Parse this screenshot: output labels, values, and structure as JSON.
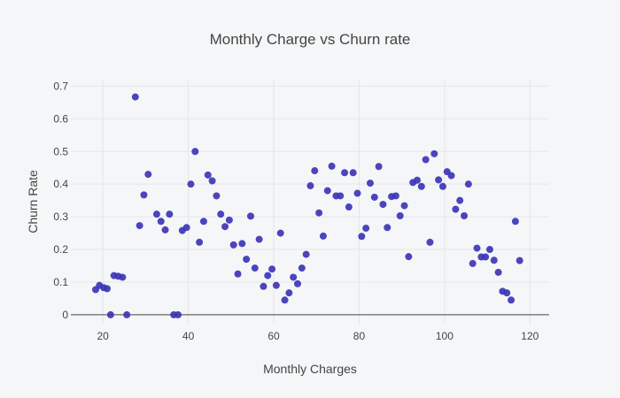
{
  "chart_data": {
    "type": "scatter",
    "title": "Monthly Charge vs Churn rate",
    "xlabel": "Monthly Charges",
    "ylabel": "Churn Rate",
    "xlim": [
      12.5,
      124.5
    ],
    "ylim": [
      -0.03,
      0.72
    ],
    "x_ticks": [
      20,
      40,
      60,
      80,
      100,
      120
    ],
    "y_ticks": [
      0,
      0.1,
      0.2,
      0.3,
      0.4,
      0.5,
      0.6,
      0.7
    ],
    "grid": true,
    "legend": "none",
    "marker_color": "#3b35b6",
    "points": [
      [
        18.3,
        0.077
      ],
      [
        19.2,
        0.09
      ],
      [
        20.2,
        0.083
      ],
      [
        21.0,
        0.08
      ],
      [
        21.8,
        0.0
      ],
      [
        22.6,
        0.12
      ],
      [
        23.6,
        0.118
      ],
      [
        24.6,
        0.115
      ],
      [
        25.6,
        0.0
      ],
      [
        27.6,
        0.667
      ],
      [
        28.6,
        0.273
      ],
      [
        29.6,
        0.367
      ],
      [
        30.6,
        0.43
      ],
      [
        32.6,
        0.308
      ],
      [
        33.6,
        0.286
      ],
      [
        34.6,
        0.26
      ],
      [
        35.6,
        0.308
      ],
      [
        36.6,
        0.0
      ],
      [
        37.6,
        0.0
      ],
      [
        38.6,
        0.258
      ],
      [
        39.6,
        0.267
      ],
      [
        40.6,
        0.4
      ],
      [
        41.6,
        0.5
      ],
      [
        42.6,
        0.222
      ],
      [
        43.6,
        0.286
      ],
      [
        44.6,
        0.428
      ],
      [
        45.6,
        0.41
      ],
      [
        46.6,
        0.364
      ],
      [
        47.6,
        0.308
      ],
      [
        48.6,
        0.27
      ],
      [
        49.6,
        0.29
      ],
      [
        50.6,
        0.214
      ],
      [
        51.6,
        0.125
      ],
      [
        52.6,
        0.218
      ],
      [
        53.6,
        0.17
      ],
      [
        54.6,
        0.302
      ],
      [
        55.6,
        0.143
      ],
      [
        56.6,
        0.231
      ],
      [
        57.6,
        0.087
      ],
      [
        58.6,
        0.12
      ],
      [
        59.6,
        0.14
      ],
      [
        60.6,
        0.09
      ],
      [
        61.6,
        0.25
      ],
      [
        62.6,
        0.045
      ],
      [
        63.6,
        0.067
      ],
      [
        64.6,
        0.115
      ],
      [
        65.6,
        0.095
      ],
      [
        66.6,
        0.143
      ],
      [
        67.6,
        0.185
      ],
      [
        68.6,
        0.395
      ],
      [
        69.6,
        0.441
      ],
      [
        70.6,
        0.312
      ],
      [
        71.6,
        0.241
      ],
      [
        72.6,
        0.38
      ],
      [
        73.6,
        0.455
      ],
      [
        74.6,
        0.364
      ],
      [
        75.6,
        0.364
      ],
      [
        76.6,
        0.435
      ],
      [
        77.6,
        0.33
      ],
      [
        78.6,
        0.435
      ],
      [
        79.6,
        0.372
      ],
      [
        80.6,
        0.24
      ],
      [
        81.6,
        0.265
      ],
      [
        82.6,
        0.403
      ],
      [
        83.6,
        0.36
      ],
      [
        84.6,
        0.454
      ],
      [
        85.6,
        0.338
      ],
      [
        86.6,
        0.267
      ],
      [
        87.6,
        0.362
      ],
      [
        88.6,
        0.364
      ],
      [
        89.6,
        0.303
      ],
      [
        90.6,
        0.334
      ],
      [
        91.6,
        0.178
      ],
      [
        92.6,
        0.405
      ],
      [
        93.6,
        0.412
      ],
      [
        94.6,
        0.393
      ],
      [
        95.6,
        0.475
      ],
      [
        96.6,
        0.222
      ],
      [
        97.6,
        0.493
      ],
      [
        98.6,
        0.413
      ],
      [
        99.6,
        0.393
      ],
      [
        100.6,
        0.438
      ],
      [
        101.6,
        0.426
      ],
      [
        102.6,
        0.323
      ],
      [
        103.6,
        0.35
      ],
      [
        104.6,
        0.303
      ],
      [
        105.6,
        0.4
      ],
      [
        106.6,
        0.157
      ],
      [
        107.6,
        0.204
      ],
      [
        108.6,
        0.177
      ],
      [
        109.6,
        0.177
      ],
      [
        110.6,
        0.2
      ],
      [
        111.6,
        0.167
      ],
      [
        112.6,
        0.13
      ],
      [
        113.6,
        0.072
      ],
      [
        114.6,
        0.067
      ],
      [
        115.6,
        0.045
      ],
      [
        116.6,
        0.286
      ],
      [
        117.6,
        0.166
      ]
    ]
  }
}
